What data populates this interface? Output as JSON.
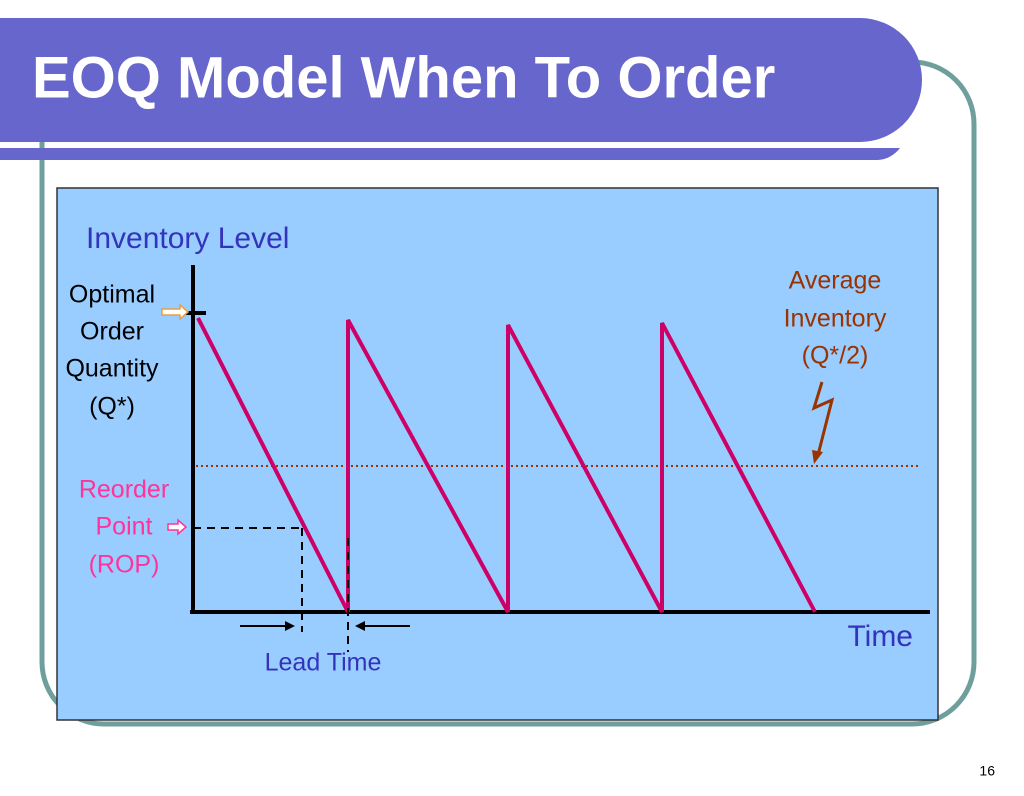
{
  "title": "EOQ Model When To Order",
  "diagram": {
    "y_axis_label": "Inventory Level",
    "x_axis_label": "Time",
    "optimal_order_quantity": [
      "Optimal",
      "Order",
      "Quantity",
      "(Q*)"
    ],
    "reorder_point": [
      "Reorder",
      "Point",
      "(ROP)"
    ],
    "average_inventory": [
      "Average",
      "Inventory",
      "(Q*/2)"
    ],
    "lead_time": "Lead Time"
  },
  "page_number": "16"
}
